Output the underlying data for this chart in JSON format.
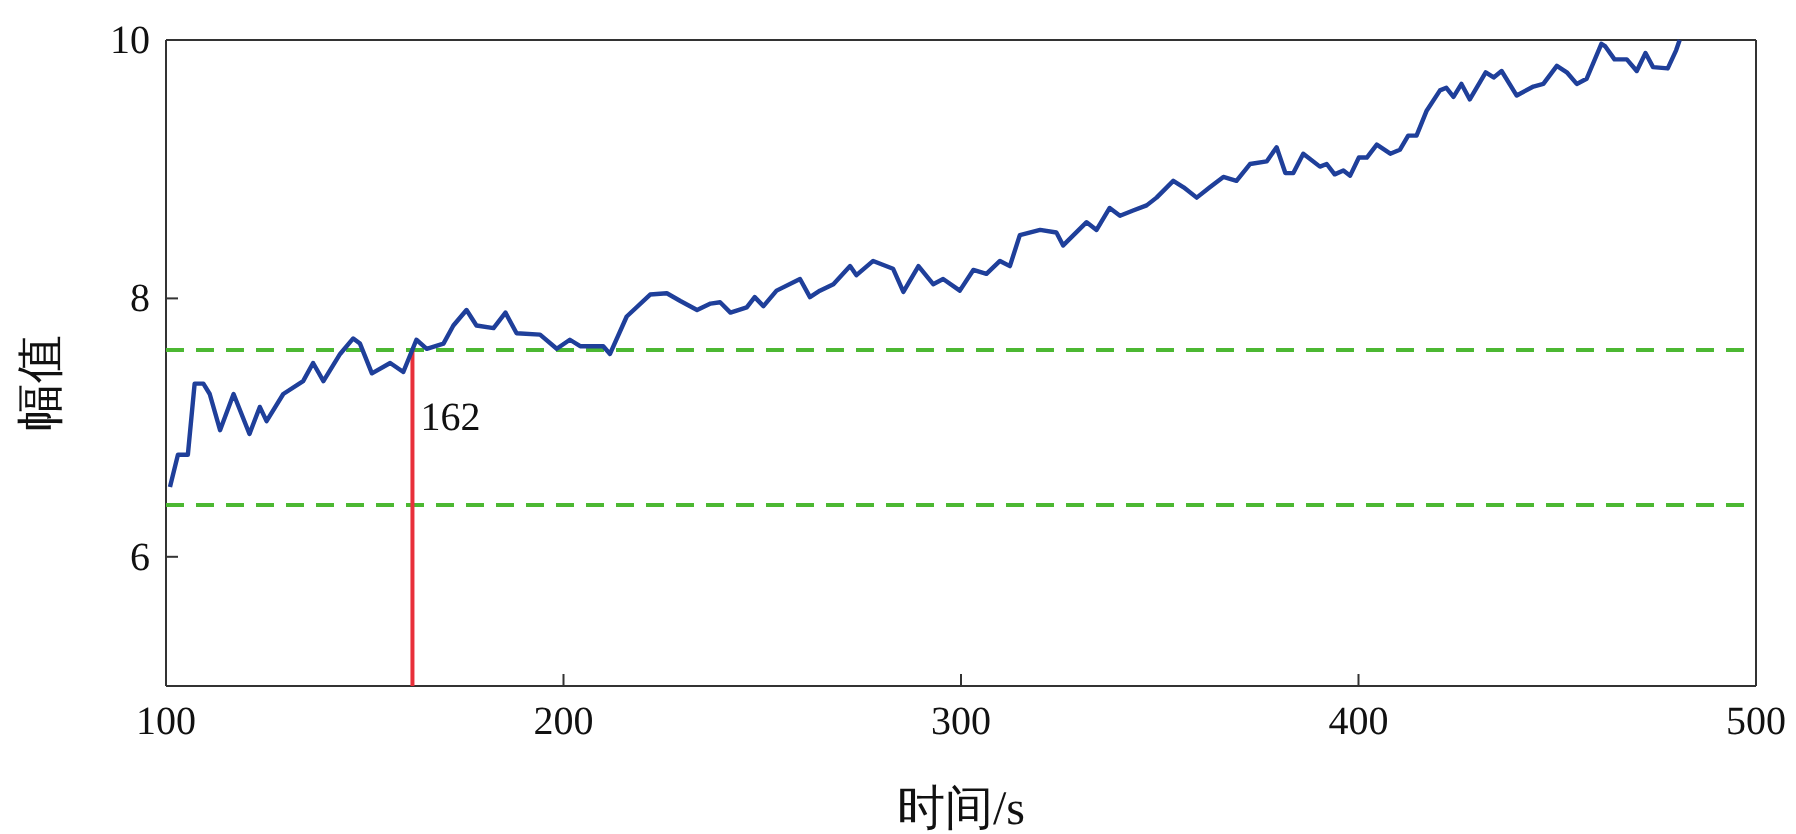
{
  "chart_data": {
    "type": "line",
    "xlabel": "时间/s",
    "ylabel": "幅值",
    "xlim": [
      100,
      500
    ],
    "ylim": [
      5,
      10
    ],
    "xticks": [
      100,
      200,
      300,
      400,
      500
    ],
    "yticks": [
      6,
      8,
      10
    ],
    "line_style": "solid",
    "marker": "none",
    "series": [
      {
        "color": "#1f3f9a",
        "x": [
          101,
          103,
          105.5,
          107.2,
          109.4,
          111,
          113.6,
          117,
          121,
          123.6,
          125.3,
          129.5,
          134.5,
          137,
          139.6,
          143.8,
          147.1,
          148.8,
          151.8,
          156.4,
          159.7,
          163,
          165.6,
          169.8,
          172.3,
          175.6,
          178.1,
          182.4,
          185.4,
          188.2,
          194.1,
          198.3,
          201.6,
          204.2,
          210,
          211.7,
          215.9,
          221.8,
          226,
          229.4,
          233.6,
          237,
          239.4,
          242,
          246.1,
          248.1,
          250.3,
          253.6,
          259.5,
          262,
          264.5,
          267.9,
          272.1,
          273.7,
          277.9,
          282.9,
          285.5,
          289.3,
          293,
          295.5,
          299.7,
          303.1,
          306.4,
          309.8,
          312.3,
          314.8,
          319.9,
          324,
          325.7,
          331.6,
          334.1,
          337.4,
          340,
          343.3,
          346.7,
          349.2,
          353.4,
          356,
          359.3,
          362.6,
          366,
          369.3,
          372.7,
          376.9,
          379.4,
          381.6,
          383.6,
          386.1,
          390.3,
          392,
          394,
          396.2,
          397.9,
          400.1,
          402.1,
          404.6,
          408,
          410.4,
          412.5,
          414.6,
          417.1,
          420.5,
          422.1,
          423.9,
          425.9,
          428,
          432,
          434,
          436,
          439.8,
          444,
          446.5,
          449.9,
          452.4,
          454.9,
          457.4,
          461.1,
          462.1,
          464.4,
          467.5,
          470,
          472.2,
          474.1,
          477.8,
          479.9,
          480.8
        ],
        "values": [
          6.54,
          6.79,
          6.79,
          7.34,
          7.34,
          7.26,
          6.98,
          7.26,
          6.95,
          7.16,
          7.05,
          7.26,
          7.36,
          7.5,
          7.36,
          7.57,
          7.69,
          7.65,
          7.42,
          7.5,
          7.43,
          7.68,
          7.61,
          7.65,
          7.79,
          7.91,
          7.79,
          7.77,
          7.89,
          7.73,
          7.72,
          7.61,
          7.68,
          7.63,
          7.63,
          7.57,
          7.86,
          8.03,
          8.04,
          7.98,
          7.91,
          7.96,
          7.97,
          7.89,
          7.93,
          8.01,
          7.94,
          8.06,
          8.15,
          8.01,
          8.06,
          8.11,
          8.25,
          8.18,
          8.29,
          8.23,
          8.05,
          8.25,
          8.11,
          8.15,
          8.06,
          8.22,
          8.19,
          8.29,
          8.25,
          8.49,
          8.53,
          8.51,
          8.41,
          8.59,
          8.53,
          8.7,
          8.64,
          8.68,
          8.72,
          8.78,
          8.91,
          8.86,
          8.78,
          8.86,
          8.94,
          8.91,
          9.04,
          9.06,
          9.17,
          8.97,
          8.97,
          9.12,
          9.02,
          9.04,
          8.96,
          8.99,
          8.95,
          9.09,
          9.09,
          9.19,
          9.12,
          9.15,
          9.26,
          9.26,
          9.45,
          9.61,
          9.63,
          9.56,
          9.66,
          9.54,
          9.75,
          9.71,
          9.76,
          9.57,
          9.64,
          9.66,
          9.8,
          9.75,
          9.66,
          9.7,
          9.97,
          9.95,
          9.85,
          9.85,
          9.76,
          9.9,
          9.79,
          9.78,
          9.92,
          10
        ]
      }
    ],
    "ref_lines": [
      {
        "axis": "y",
        "value": 7.6,
        "color": "#4cb832",
        "line_style": "dashed"
      },
      {
        "axis": "y",
        "value": 6.4,
        "color": "#4cb832",
        "line_style": "dashed"
      },
      {
        "axis": "x",
        "value": 162,
        "label": "162",
        "color": "#e8303a",
        "line_style": "solid"
      }
    ]
  }
}
